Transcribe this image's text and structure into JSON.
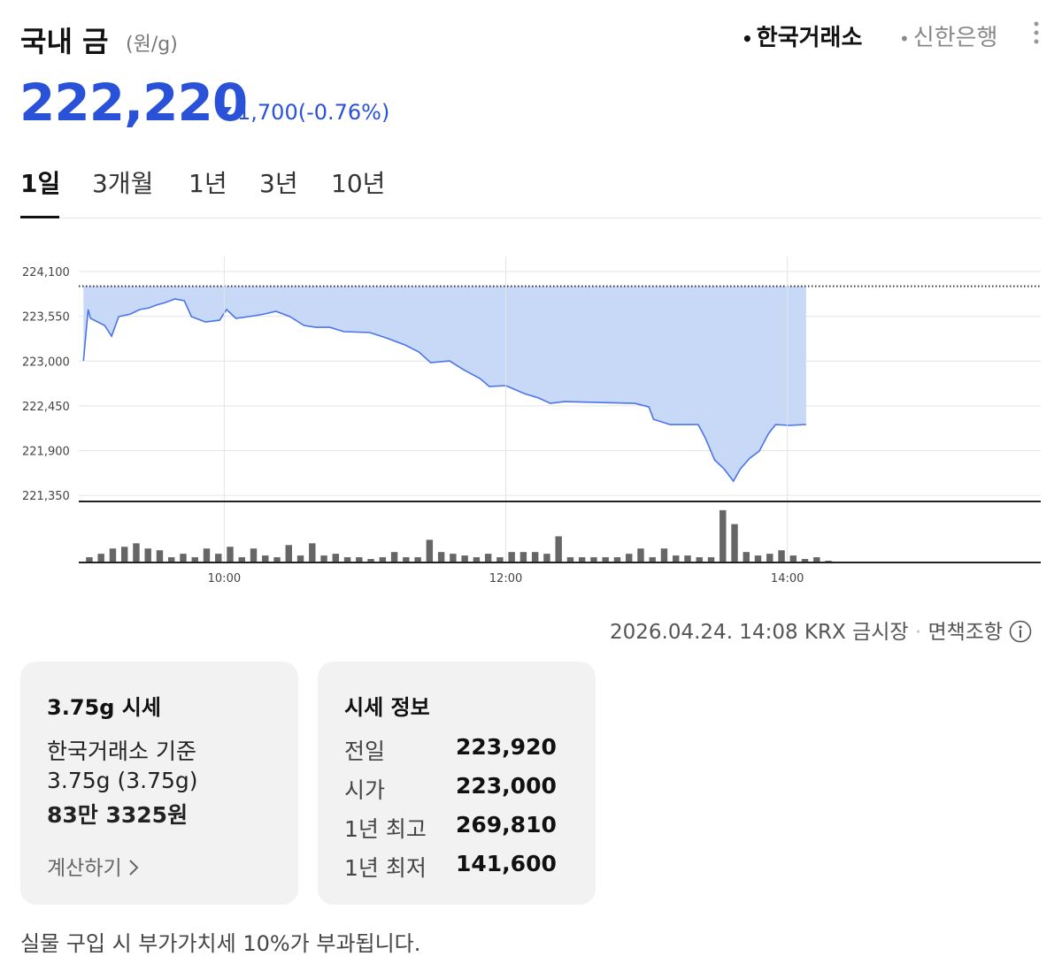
{
  "header": {
    "title": "국내 금",
    "unit": "(원/g)",
    "sources": [
      "한국거래소",
      "신한은행"
    ]
  },
  "price": {
    "value": "222,220",
    "change": "1,700",
    "change_pct": "(-0.76%)"
  },
  "tabs": [
    "1일",
    "3개월",
    "1년",
    "3년",
    "10년"
  ],
  "chart_data": [
    {
      "type": "line",
      "color": "#4a74e8",
      "fill": "#c8d9f7",
      "grid": true,
      "x": [
        540,
        542,
        543,
        549,
        552,
        555,
        560,
        564,
        568,
        571,
        575,
        579,
        583,
        586,
        592,
        598,
        601,
        605,
        613,
        617,
        622,
        628,
        634,
        639,
        645,
        651,
        662,
        669,
        677,
        683,
        688,
        696,
        702,
        709,
        713,
        720,
        728,
        734,
        739,
        745,
        760,
        775,
        781,
        783,
        790,
        802,
        805,
        809,
        813,
        817,
        820,
        824,
        828,
        832,
        835,
        841,
        848
      ],
      "values": [
        223002,
        223633,
        223524,
        223437,
        223306,
        223546,
        223578,
        223633,
        223654,
        223687,
        223720,
        223763,
        223741,
        223546,
        223480,
        223502,
        223633,
        223524,
        223557,
        223578,
        223611,
        223546,
        223437,
        223415,
        223415,
        223361,
        223350,
        223285,
        223198,
        223111,
        222980,
        223002,
        222893,
        222785,
        222687,
        222698,
        222600,
        222546,
        222480,
        222502,
        222491,
        222480,
        222437,
        222285,
        222219,
        222219,
        222056,
        221785,
        221676,
        221524,
        221676,
        221806,
        221893,
        222111,
        222219,
        222209,
        222220
      ],
      "xlim": [
        538,
        948
      ],
      "ylim": [
        221275,
        224285
      ],
      "yticks": [
        {
          "value": 224100,
          "label": "224,100"
        },
        {
          "value": 223550,
          "label": "223,550"
        },
        {
          "value": 223000,
          "label": "223,000"
        },
        {
          "value": 222450,
          "label": "222,450"
        },
        {
          "value": 221900,
          "label": "221,900"
        },
        {
          "value": 221350,
          "label": "221,350"
        }
      ],
      "reference_line": 223920
    },
    {
      "type": "bar",
      "color": "#666666",
      "x": [
        540,
        545,
        550,
        555,
        560,
        565,
        570,
        575,
        580,
        585,
        590,
        595,
        600,
        605,
        610,
        615,
        620,
        625,
        630,
        635,
        640,
        645,
        650,
        655,
        660,
        665,
        670,
        675,
        680,
        685,
        690,
        695,
        700,
        705,
        710,
        715,
        720,
        725,
        730,
        735,
        740,
        745,
        750,
        755,
        760,
        765,
        770,
        775,
        780,
        785,
        790,
        795,
        800,
        805,
        810,
        815,
        820,
        825,
        830,
        835,
        840,
        845,
        850,
        855
      ],
      "values": [
        6,
        10,
        16,
        18,
        22,
        16,
        14,
        6,
        10,
        6,
        16,
        10,
        18,
        6,
        16,
        8,
        6,
        20,
        8,
        22,
        8,
        10,
        6,
        6,
        4,
        6,
        12,
        6,
        6,
        26,
        12,
        10,
        8,
        6,
        10,
        6,
        12,
        12,
        12,
        10,
        30,
        6,
        6,
        6,
        6,
        6,
        10,
        16,
        6,
        16,
        8,
        8,
        6,
        6,
        60,
        44,
        12,
        8,
        10,
        14,
        8,
        4,
        6,
        2
      ],
      "xlim": [
        538,
        948
      ],
      "ylim": [
        0,
        70
      ],
      "xticks": [
        {
          "value": 600,
          "label": "10:00"
        },
        {
          "value": 720,
          "label": "12:00"
        },
        {
          "value": 840,
          "label": "14:00"
        }
      ]
    }
  ],
  "footer": {
    "timestamp": "2026.04.24. 14:08 KRX 금시장",
    "disclaimer": "면책조항"
  },
  "card_weight": {
    "title": "3.75g 시세",
    "lines": [
      "한국거래소 기준",
      "3.75g (3.75g)"
    ],
    "amount": "83만 3325원",
    "link": "계산하기"
  },
  "card_info": {
    "title": "시세 정보",
    "rows": [
      [
        "전일",
        "223,920"
      ],
      [
        "시가",
        "223,000"
      ],
      [
        "1년 최고",
        "269,810"
      ],
      [
        "1년 최저",
        "141,600"
      ]
    ]
  },
  "notice": "실물 구입 시 부가가치세 10%가 부과됩니다."
}
